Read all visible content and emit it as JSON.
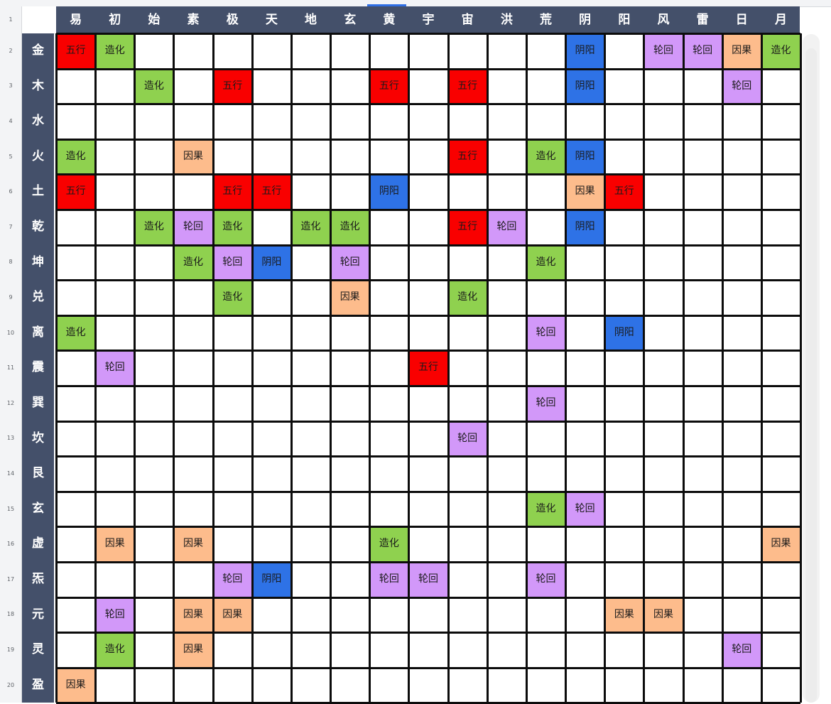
{
  "colors": {
    "header_bg": "#44506a",
    "grid_line": "#0c0c0c",
    "五行": "#f90000",
    "造化": "#8fd14f",
    "阴阳": "#2e72e6",
    "轮回": "#d298f9",
    "因果": "#fdbc8c"
  },
  "spreadsheet": {
    "row_numbers": [
      "1",
      "2",
      "3",
      "4",
      "5",
      "6",
      "7",
      "8",
      "9",
      "10",
      "11",
      "12",
      "13",
      "14",
      "15",
      "16",
      "17",
      "18",
      "19",
      "20"
    ],
    "column_headers": [
      "易",
      "初",
      "始",
      "素",
      "极",
      "天",
      "地",
      "玄",
      "黄",
      "宇",
      "宙",
      "洪",
      "荒",
      "阴",
      "阳",
      "风",
      "雷",
      "日",
      "月"
    ],
    "row_headers": [
      "金",
      "木",
      "水",
      "火",
      "土",
      "乾",
      "坤",
      "兑",
      "离",
      "震",
      "巽",
      "坎",
      "艮",
      "玄",
      "虚",
      "炁",
      "元",
      "灵",
      "盈"
    ],
    "rows": [
      [
        "五行",
        "造化",
        "",
        "",
        "",
        "",
        "",
        "",
        "",
        "",
        "",
        "",
        "",
        "阴阳",
        "",
        "轮回",
        "轮回",
        "因果",
        "造化"
      ],
      [
        "",
        "",
        "造化",
        "",
        "五行",
        "",
        "",
        "",
        "五行",
        "",
        "五行",
        "",
        "",
        "阴阳",
        "",
        "",
        "",
        "轮回",
        ""
      ],
      [
        "",
        "",
        "",
        "",
        "",
        "",
        "",
        "",
        "",
        "",
        "",
        "",
        "",
        "",
        "",
        "",
        "",
        "",
        ""
      ],
      [
        "造化",
        "",
        "",
        "因果",
        "",
        "",
        "",
        "",
        "",
        "",
        "五行",
        "",
        "造化",
        "阴阳",
        "",
        "",
        "",
        "",
        ""
      ],
      [
        "五行",
        "",
        "",
        "",
        "五行",
        "五行",
        "",
        "",
        "阴阳",
        "",
        "",
        "",
        "",
        "因果",
        "五行",
        "",
        "",
        "",
        ""
      ],
      [
        "",
        "",
        "造化",
        "轮回",
        "造化",
        "",
        "造化",
        "造化",
        "",
        "",
        "五行",
        "轮回",
        "",
        "阴阳",
        "",
        "",
        "",
        "",
        ""
      ],
      [
        "",
        "",
        "",
        "造化",
        "轮回",
        "阴阳",
        "",
        "轮回",
        "",
        "",
        "",
        "",
        "造化",
        "",
        "",
        "",
        "",
        "",
        ""
      ],
      [
        "",
        "",
        "",
        "",
        "造化",
        "",
        "",
        "因果",
        "",
        "",
        "造化",
        "",
        "",
        "",
        "",
        "",
        "",
        "",
        ""
      ],
      [
        "造化",
        "",
        "",
        "",
        "",
        "",
        "",
        "",
        "",
        "",
        "",
        "",
        "轮回",
        "",
        "阴阳",
        "",
        "",
        "",
        ""
      ],
      [
        "",
        "轮回",
        "",
        "",
        "",
        "",
        "",
        "",
        "",
        "五行",
        "",
        "",
        "",
        "",
        "",
        "",
        "",
        "",
        ""
      ],
      [
        "",
        "",
        "",
        "",
        "",
        "",
        "",
        "",
        "",
        "",
        "",
        "",
        "轮回",
        "",
        "",
        "",
        "",
        "",
        ""
      ],
      [
        "",
        "",
        "",
        "",
        "",
        "",
        "",
        "",
        "",
        "",
        "轮回",
        "",
        "",
        "",
        "",
        "",
        "",
        "",
        ""
      ],
      [
        "",
        "",
        "",
        "",
        "",
        "",
        "",
        "",
        "",
        "",
        "",
        "",
        "",
        "",
        "",
        "",
        "",
        "",
        ""
      ],
      [
        "",
        "",
        "",
        "",
        "",
        "",
        "",
        "",
        "",
        "",
        "",
        "",
        "造化",
        "轮回",
        "",
        "",
        "",
        "",
        ""
      ],
      [
        "",
        "因果",
        "",
        "因果",
        "",
        "",
        "",
        "",
        "造化",
        "",
        "",
        "",
        "",
        "",
        "",
        "",
        "",
        "",
        "因果"
      ],
      [
        "",
        "",
        "",
        "",
        "轮回",
        "阴阳",
        "",
        "",
        "轮回",
        "轮回",
        "",
        "",
        "轮回",
        "",
        "",
        "",
        "",
        "",
        ""
      ],
      [
        "",
        "轮回",
        "",
        "因果",
        "因果",
        "",
        "",
        "",
        "",
        "",
        "",
        "",
        "",
        "",
        "因果",
        "因果",
        "",
        "",
        ""
      ],
      [
        "",
        "造化",
        "",
        "因果",
        "",
        "",
        "",
        "",
        "",
        "",
        "",
        "",
        "",
        "",
        "",
        "",
        "",
        "轮回",
        ""
      ],
      [
        "因果",
        "",
        "",
        "",
        "",
        "",
        "",
        "",
        "",
        "",
        "",
        "",
        "",
        "",
        "",
        "",
        "",
        "",
        ""
      ]
    ]
  }
}
